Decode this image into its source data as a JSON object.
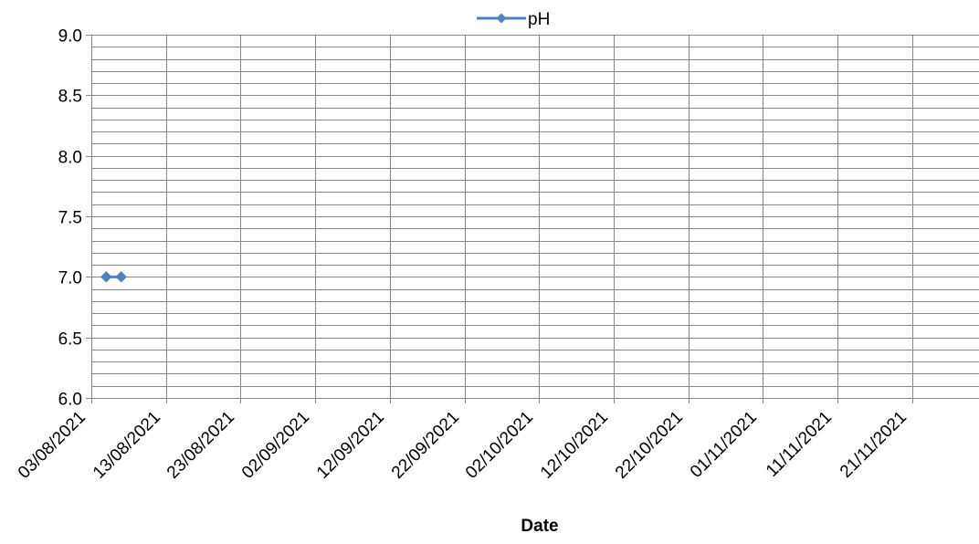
{
  "chart_data": {
    "type": "line",
    "title": "",
    "xlabel": "Date",
    "ylabel": "",
    "ylim": [
      6.0,
      9.0
    ],
    "y_major_step": 0.5,
    "y_minor_step": 0.1,
    "y_tick_labels": [
      "6.0",
      "6.5",
      "7.0",
      "7.5",
      "8.0",
      "8.5",
      "9.0"
    ],
    "x_tick_labels": [
      "03/08/2021",
      "13/08/2021",
      "23/08/2021",
      "02/09/2021",
      "12/09/2021",
      "22/09/2021",
      "02/10/2021",
      "12/10/2021",
      "22/10/2021",
      "01/11/2021",
      "11/11/2021",
      "21/11/2021"
    ],
    "x_tick_interval_days": 10,
    "grid": true,
    "legend": {
      "position": "top",
      "entries": [
        "pH"
      ]
    },
    "series": [
      {
        "name": "pH",
        "color": "#4F81BD",
        "marker": "diamond",
        "points": [
          {
            "x": "05/08/2021",
            "y": 7.0
          },
          {
            "x": "07/08/2021",
            "y": 7.0
          }
        ]
      }
    ]
  }
}
